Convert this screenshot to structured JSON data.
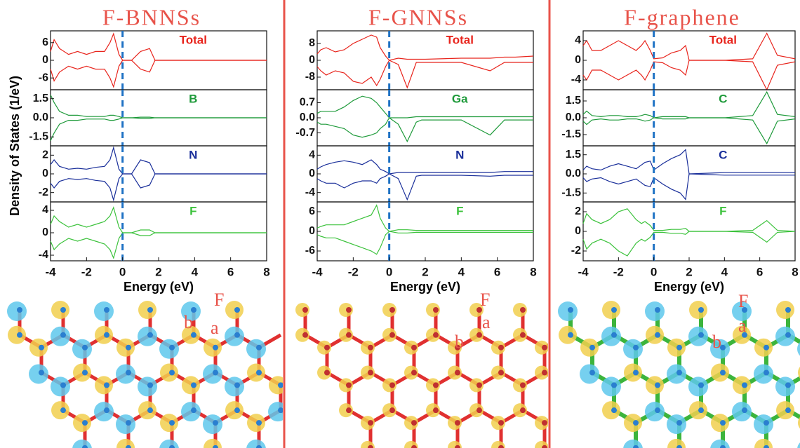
{
  "chart_data": [
    {
      "type": "line",
      "label": "Total",
      "label_color": "#e8241c",
      "xlim": [
        -4,
        8
      ],
      "ylim": [
        -10,
        10
      ],
      "yticks": [
        6,
        0,
        -6
      ],
      "vline_x": 0,
      "x": [
        -4,
        -3.8,
        -3.5,
        -3,
        -2.5,
        -2,
        -1.5,
        -1,
        -0.7,
        -0.5,
        -0.2,
        0,
        0.5,
        1,
        1.5,
        1.8,
        2,
        4,
        5.6,
        6.4,
        7,
        8
      ],
      "series": [
        {
          "color": "#e8241c",
          "values": [
            3,
            7,
            4,
            2,
            3,
            2,
            3,
            3,
            6,
            9,
            2,
            0,
            0,
            3,
            4,
            0,
            0,
            0,
            0,
            0,
            0,
            0
          ]
        },
        {
          "color": "#e8241c",
          "values": [
            -3,
            -7,
            -4,
            -2,
            -3,
            -2,
            -3,
            -3,
            -6,
            -9,
            -2,
            0,
            0,
            -3,
            -4,
            0,
            0,
            0,
            0,
            0,
            0,
            0
          ]
        }
      ]
    },
    {
      "type": "line",
      "label": "B",
      "label_color": "#1e9a3a",
      "xlim": [
        -4,
        8
      ],
      "ylim": [
        -2.2,
        2.2
      ],
      "yticks": [
        1.5,
        {
          "value": 0,
          "label": "0.0"
        },
        -1.5
      ],
      "vline_x": 0,
      "x": [
        -4,
        -3.8,
        -3.5,
        -3,
        -2.5,
        -2,
        -1.5,
        -1,
        -0.7,
        -0.5,
        -0.2,
        0,
        0.5,
        1,
        1.5,
        1.8,
        2,
        4,
        5.6,
        6.4,
        7,
        8
      ],
      "series": [
        {
          "color": "#1e9a3a",
          "values": [
            1.8,
            1.2,
            0.5,
            0.2,
            0.2,
            0.1,
            0.1,
            0.1,
            0.2,
            0.2,
            0.1,
            0,
            0,
            0.05,
            0.05,
            0,
            0,
            0,
            0,
            0,
            0,
            0
          ]
        },
        {
          "color": "#1e9a3a",
          "values": [
            -1.8,
            -1.2,
            -0.5,
            -0.2,
            -0.2,
            -0.1,
            -0.1,
            -0.1,
            -0.2,
            -0.2,
            -0.1,
            0,
            0,
            -0.05,
            -0.05,
            0,
            0,
            0,
            0,
            0,
            0,
            0
          ]
        }
      ]
    },
    {
      "type": "line",
      "label": "N",
      "label_color": "#1a2f9a",
      "xlim": [
        -4,
        8
      ],
      "ylim": [
        -3,
        3
      ],
      "yticks": [
        2,
        0,
        -2
      ],
      "vline_x": 0,
      "x": [
        -4,
        -3.8,
        -3.5,
        -3,
        -2.5,
        -2,
        -1.5,
        -1,
        -0.7,
        -0.5,
        -0.2,
        0,
        0.5,
        1,
        1.5,
        1.8,
        2,
        4,
        5.6,
        6.4,
        7,
        8
      ],
      "series": [
        {
          "color": "#1a2f9a",
          "values": [
            1,
            1.5,
            0.8,
            0.5,
            0.6,
            0.5,
            0.7,
            0.8,
            1.5,
            2.8,
            0.5,
            0,
            0,
            1.5,
            1.2,
            0,
            0,
            0,
            0,
            0,
            0,
            0
          ]
        },
        {
          "color": "#1a2f9a",
          "values": [
            -1,
            -1.5,
            -0.8,
            -0.5,
            -0.6,
            -0.5,
            -0.7,
            -0.8,
            -1.5,
            -2.8,
            -0.5,
            0,
            0,
            -1.5,
            -1.2,
            0,
            0,
            0,
            0,
            0,
            0,
            0
          ]
        }
      ]
    },
    {
      "type": "line",
      "label": "F",
      "label_color": "#3cc23c",
      "xlim": [
        -4,
        8
      ],
      "ylim": [
        -5,
        5.5
      ],
      "yticks": [
        4,
        0,
        -4
      ],
      "vline_x": 0,
      "xticks": [
        -4,
        -2,
        0,
        2,
        4,
        6,
        8
      ],
      "x_label": "Energy (eV)",
      "x": [
        -4,
        -3.8,
        -3.5,
        -3,
        -2.5,
        -2,
        -1.5,
        -1,
        -0.7,
        -0.5,
        -0.2,
        0,
        0.5,
        1,
        1.5,
        1.8,
        2,
        4,
        5.6,
        6.4,
        7,
        8
      ],
      "series": [
        {
          "color": "#3cc23c",
          "values": [
            1.5,
            3,
            2,
            1,
            1.5,
            1,
            1.5,
            2,
            3,
            4.5,
            1,
            0,
            0,
            0.5,
            0.5,
            0,
            0,
            0,
            0,
            0,
            0,
            0
          ]
        },
        {
          "color": "#3cc23c",
          "values": [
            -1.5,
            -3,
            -2,
            -1,
            -1.5,
            -1,
            -1.5,
            -2,
            -3,
            -4.5,
            -1,
            0,
            0,
            -0.5,
            -0.5,
            0,
            0,
            0,
            0,
            0,
            0,
            0
          ]
        }
      ]
    },
    {
      "type": "line",
      "label": "Total",
      "label_color": "#e8241c",
      "xlim": [
        -4,
        8
      ],
      "ylim": [
        -14,
        14
      ],
      "yticks": [
        8,
        0,
        -8
      ],
      "vline_x": 0,
      "x": [
        -4,
        -3.8,
        -3.5,
        -3,
        -2.5,
        -2,
        -1.5,
        -1,
        -0.7,
        -0.5,
        -0.2,
        0,
        0.5,
        1,
        1.5,
        1.8,
        2,
        4,
        5.6,
        6.4,
        7,
        8
      ],
      "series": [
        {
          "color": "#e8241c",
          "values": [
            3,
            5,
            6,
            4,
            5,
            8,
            10,
            12,
            11,
            6,
            2,
            0,
            1,
            0.5,
            0.5,
            0.5,
            0.5,
            1,
            1,
            1.5,
            1.5,
            2
          ]
        },
        {
          "color": "#e8241c",
          "values": [
            -3,
            -5,
            -7,
            -5,
            -6,
            -10,
            -11,
            -8,
            -12,
            -9,
            -3,
            0,
            -2,
            -13,
            -1,
            -1,
            -1,
            -1,
            -5,
            -1,
            -1,
            -1
          ]
        }
      ]
    },
    {
      "type": "line",
      "label": "Ga",
      "label_color": "#1e9a3a",
      "xlim": [
        -4,
        8
      ],
      "ylim": [
        -1.3,
        1.3
      ],
      "yticks": [
        0.7,
        {
          "value": 0,
          "label": "0.0"
        },
        -0.7
      ],
      "vline_x": 0,
      "x": [
        -4,
        -3.8,
        -3.5,
        -3,
        -2.5,
        -2,
        -1.5,
        -1,
        -0.7,
        -0.5,
        -0.2,
        0,
        0.5,
        1,
        1.5,
        1.8,
        2,
        4,
        5.6,
        6.4,
        7,
        8
      ],
      "series": [
        {
          "color": "#1e9a3a",
          "values": [
            0.2,
            0.3,
            0.3,
            0.3,
            0.5,
            0.8,
            1.0,
            0.9,
            0.7,
            0.5,
            0.2,
            0,
            0,
            0,
            0.05,
            0.05,
            0.05,
            0.05,
            0.05,
            0.05,
            0.05,
            0.05
          ]
        },
        {
          "color": "#1e9a3a",
          "values": [
            -0.2,
            -0.3,
            -0.3,
            -0.4,
            -0.5,
            -0.8,
            -0.9,
            -0.8,
            -0.7,
            -0.5,
            -0.3,
            0,
            -0.3,
            -1.1,
            -0.2,
            -0.1,
            -0.1,
            -0.1,
            -0.8,
            -0.1,
            -0.1,
            -0.1
          ]
        }
      ]
    },
    {
      "type": "line",
      "label": "N",
      "label_color": "#1a2f9a",
      "xlim": [
        -4,
        8
      ],
      "ylim": [
        -6,
        6
      ],
      "yticks": [
        4,
        0,
        -4
      ],
      "vline_x": 0,
      "x": [
        -4,
        -3.8,
        -3.5,
        -3,
        -2.5,
        -2,
        -1.5,
        -1,
        -0.7,
        -0.5,
        -0.2,
        0,
        0.5,
        1,
        1.5,
        1.8,
        2,
        4,
        5.6,
        6.4,
        7,
        8
      ],
      "series": [
        {
          "color": "#1a2f9a",
          "values": [
            1,
            1.5,
            2,
            2.5,
            2.8,
            2.5,
            2,
            3,
            2,
            1,
            0.5,
            0,
            0.3,
            0.3,
            0.3,
            0.3,
            0.3,
            0.3,
            0.3,
            0.5,
            0.5,
            0.5
          ]
        },
        {
          "color": "#1a2f9a",
          "values": [
            -1,
            -1.5,
            -2,
            -2,
            -3,
            -2,
            -1.5,
            -1.5,
            -2,
            -1,
            -0.5,
            0,
            -1,
            -5.5,
            -0.5,
            -0.3,
            -0.3,
            -0.3,
            -0.5,
            -0.3,
            -0.3,
            -0.3
          ]
        }
      ]
    },
    {
      "type": "line",
      "label": "F",
      "label_color": "#3cc23c",
      "xlim": [
        -4,
        8
      ],
      "ylim": [
        -9,
        9
      ],
      "yticks": [
        6,
        0,
        -6
      ],
      "vline_x": 0,
      "xticks": [
        -4,
        -2,
        0,
        2,
        4,
        6,
        8
      ],
      "x_label": "Energy (eV)",
      "x": [
        -4,
        -3.8,
        -3.5,
        -3,
        -2.5,
        -2,
        -1.5,
        -1,
        -0.7,
        -0.5,
        -0.2,
        0,
        0.5,
        1,
        1.5,
        1.8,
        2,
        4,
        5.6,
        6.4,
        7,
        8
      ],
      "series": [
        {
          "color": "#3cc23c",
          "values": [
            1,
            1.5,
            2,
            2,
            2,
            3,
            4,
            5,
            8,
            4,
            1,
            0,
            0.5,
            0.5,
            0.3,
            0.3,
            0.3,
            0.3,
            0.3,
            0.3,
            0.3,
            0.3
          ]
        },
        {
          "color": "#3cc23c",
          "values": [
            -1,
            -1.5,
            -2,
            -2,
            -3,
            -4,
            -5,
            -6,
            -7,
            -5,
            -1,
            0,
            -0.5,
            -0.5,
            -0.3,
            -0.3,
            -0.3,
            -0.3,
            -0.3,
            -0.3,
            -0.3,
            -0.3
          ]
        }
      ]
    },
    {
      "type": "line",
      "label": "Total",
      "label_color": "#e8241c",
      "xlim": [
        -4,
        8
      ],
      "ylim": [
        -6,
        6
      ],
      "yticks": [
        4,
        0,
        -4
      ],
      "vline_x": 0,
      "x": [
        -4,
        -3.8,
        -3.5,
        -3,
        -2.5,
        -2,
        -1.5,
        -1,
        -0.7,
        -0.5,
        -0.2,
        0,
        0.5,
        1,
        1.5,
        1.8,
        2,
        4,
        5.6,
        6.4,
        7,
        8
      ],
      "series": [
        {
          "color": "#e8241c",
          "values": [
            3,
            4,
            2,
            2,
            3,
            4,
            3,
            2,
            3,
            4,
            2,
            0.3,
            0.5,
            1.5,
            2,
            3,
            0,
            0,
            0.3,
            5.5,
            1,
            0.3
          ]
        },
        {
          "color": "#e8241c",
          "values": [
            -3,
            -4,
            -2,
            -2,
            -3,
            -4,
            -3,
            -2,
            -3,
            -4,
            -2,
            -0.3,
            -0.5,
            -1.5,
            -2,
            -3,
            0,
            0,
            -0.3,
            -6,
            -1,
            -0.3
          ]
        }
      ]
    },
    {
      "type": "line",
      "label": "C",
      "label_color": "#1e9a3a",
      "xlim": [
        -4,
        8
      ],
      "ylim": [
        -2.5,
        2.5
      ],
      "yticks": [
        1.5,
        {
          "value": 0,
          "label": "0.0"
        },
        -1.5
      ],
      "vline_x": 0,
      "x": [
        -4,
        -3.8,
        -3.5,
        -3,
        -2.5,
        -2,
        -1.5,
        -1,
        -0.7,
        -0.5,
        -0.2,
        0,
        0.5,
        1,
        1.5,
        1.8,
        2,
        4,
        5.6,
        6.4,
        7,
        8
      ],
      "series": [
        {
          "color": "#1e9a3a",
          "values": [
            0.3,
            0.6,
            0.2,
            0.1,
            0.2,
            0.2,
            0.1,
            0.1,
            0.2,
            0.3,
            0.2,
            0,
            0.1,
            0.1,
            0.1,
            0.1,
            0,
            0,
            0.2,
            2.3,
            0.3,
            0.1
          ]
        },
        {
          "color": "#1e9a3a",
          "values": [
            -0.3,
            -0.6,
            -0.2,
            -0.1,
            -0.2,
            -0.2,
            -0.1,
            -0.1,
            -0.2,
            -0.3,
            -0.2,
            0,
            -0.1,
            -0.1,
            -0.1,
            -0.1,
            0,
            0,
            -0.2,
            -2.3,
            -0.3,
            -0.1
          ]
        }
      ]
    },
    {
      "type": "line",
      "label": "C",
      "label_color": "#1a2f9a",
      "xlim": [
        -4,
        8
      ],
      "ylim": [
        -2.2,
        2.2
      ],
      "yticks": [
        1.5,
        {
          "value": 0,
          "label": "0.0"
        },
        -1.5
      ],
      "vline_x": 0,
      "x": [
        -4,
        -3.8,
        -3.5,
        -3,
        -2.5,
        -2,
        -1.5,
        -1,
        -0.7,
        -0.5,
        -0.2,
        0,
        0.5,
        1,
        1.5,
        1.8,
        2,
        4,
        5.6,
        6.4,
        7,
        8
      ],
      "series": [
        {
          "color": "#1a2f9a",
          "values": [
            0.3,
            0.6,
            0.4,
            0.3,
            0.6,
            0.8,
            0.6,
            0.4,
            0.7,
            0.9,
            1.0,
            0.3,
            0.8,
            1.2,
            1.5,
            1.9,
            0,
            0.1,
            0.1,
            0.1,
            0.1,
            0.1
          ]
        },
        {
          "color": "#1a2f9a",
          "values": [
            -0.3,
            -0.6,
            -0.4,
            -0.3,
            -0.6,
            -0.8,
            -0.6,
            -0.4,
            -0.7,
            -0.9,
            -1.0,
            -0.3,
            -0.8,
            -1.2,
            -1.5,
            -2.0,
            0,
            -0.1,
            -0.1,
            -0.1,
            -0.1,
            -0.1
          ]
        }
      ]
    },
    {
      "type": "line",
      "label": "F",
      "label_color": "#3cc23c",
      "xlim": [
        -4,
        8
      ],
      "ylim": [
        -3,
        3
      ],
      "yticks": [
        2,
        0,
        -2
      ],
      "vline_x": 0,
      "xticks": [
        -4,
        -2,
        0,
        2,
        4,
        6,
        8
      ],
      "x_label": "Energy (eV)",
      "x": [
        -4,
        -3.8,
        -3.5,
        -3,
        -2.5,
        -2,
        -1.5,
        -1,
        -0.7,
        -0.5,
        -0.2,
        0,
        0.5,
        1,
        1.5,
        1.8,
        2,
        4,
        5.6,
        6.4,
        7,
        8
      ],
      "series": [
        {
          "color": "#3cc23c",
          "values": [
            0.8,
            1.8,
            1.2,
            0.8,
            1.2,
            2,
            2.3,
            1.2,
            0.8,
            1,
            0.6,
            0.1,
            0.1,
            0.2,
            0.2,
            0.3,
            0,
            0,
            0.1,
            1.1,
            0.1,
            0
          ]
        },
        {
          "color": "#3cc23c",
          "values": [
            -0.8,
            -1.8,
            -1.2,
            -0.8,
            -1.2,
            -2,
            -2.5,
            -1.2,
            -0.8,
            -1,
            -0.6,
            -0.1,
            -0.1,
            -0.2,
            -0.2,
            -0.3,
            0,
            0,
            -0.1,
            -1.1,
            -0.1,
            0
          ]
        }
      ]
    }
  ],
  "figure": {
    "y_label": "Density of States (1/eV)",
    "panels": [
      {
        "title": "F-BNNSs",
        "structure_labels": [
          "F",
          "a",
          "b"
        ]
      },
      {
        "title": "F-GNNSs",
        "structure_labels": [
          "F",
          "a",
          "b"
        ]
      },
      {
        "title": "F-graphene",
        "structure_labels": [
          "F",
          "a",
          "b"
        ]
      }
    ]
  }
}
